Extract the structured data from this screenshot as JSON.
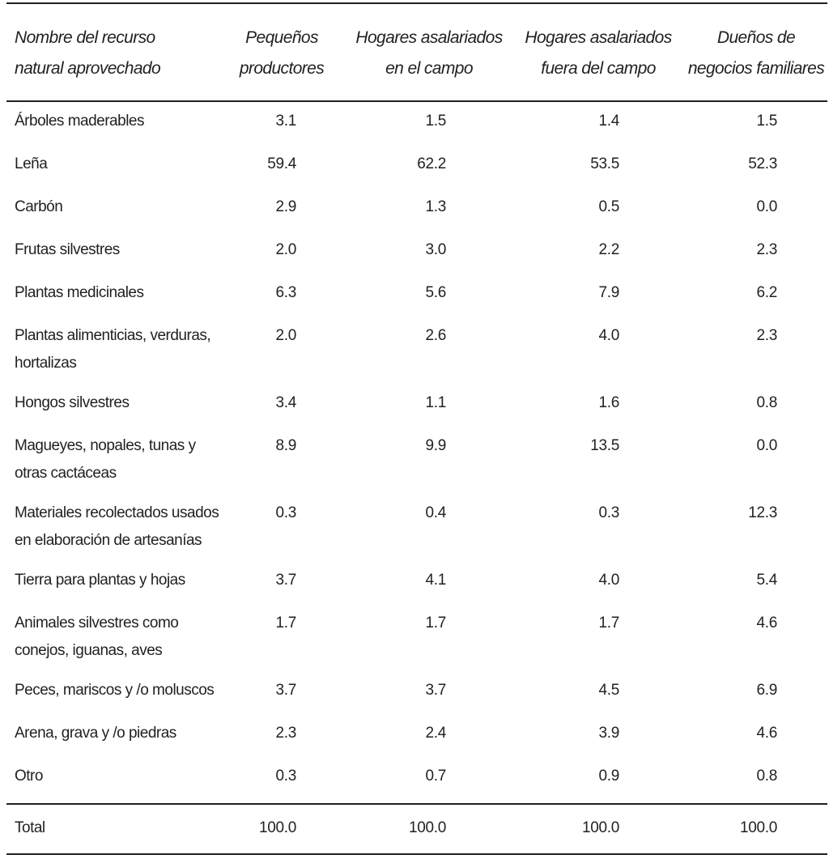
{
  "table": {
    "headers": [
      [
        "Nombre del recurso",
        "natural aprovechado"
      ],
      [
        "Pequeños",
        "productores"
      ],
      [
        "Hogares asalariados",
        "en el campo"
      ],
      [
        "Hogares asalariados",
        "fuera del campo"
      ],
      [
        "Dueños de",
        "negocios familiares"
      ]
    ],
    "rows": [
      {
        "name": [
          "Árboles maderables"
        ],
        "values": [
          "3.1",
          "1.5",
          "1.4",
          "1.5"
        ]
      },
      {
        "name": [
          "Leña"
        ],
        "values": [
          "59.4",
          "62.2",
          "53.5",
          "52.3"
        ]
      },
      {
        "name": [
          "Carbón"
        ],
        "values": [
          "2.9",
          "1.3",
          "0.5",
          "0.0"
        ]
      },
      {
        "name": [
          "Frutas silvestres"
        ],
        "values": [
          "2.0",
          "3.0",
          "2.2",
          "2.3"
        ]
      },
      {
        "name": [
          "Plantas medicinales"
        ],
        "values": [
          "6.3",
          "5.6",
          "7.9",
          "6.2"
        ]
      },
      {
        "name": [
          "Plantas alimenticias, verduras,",
          "hortalizas"
        ],
        "values": [
          "2.0",
          "2.6",
          "4.0",
          "2.3"
        ]
      },
      {
        "name": [
          "Hongos silvestres"
        ],
        "values": [
          "3.4",
          "1.1",
          "1.6",
          "0.8"
        ]
      },
      {
        "name": [
          "Magueyes, nopales, tunas y",
          "otras cactáceas"
        ],
        "values": [
          "8.9",
          "9.9",
          "13.5",
          "0.0"
        ]
      },
      {
        "name": [
          "Materiales recolectados usados",
          "en elaboración de artesanías"
        ],
        "values": [
          "0.3",
          "0.4",
          "0.3",
          "12.3"
        ]
      },
      {
        "name": [
          "Tierra para plantas y hojas"
        ],
        "values": [
          "3.7",
          "4.1",
          "4.0",
          "5.4"
        ]
      },
      {
        "name": [
          "Animales silvestres como",
          "conejos, iguanas, aves"
        ],
        "values": [
          "1.7",
          "1.7",
          "1.7",
          "4.6"
        ]
      },
      {
        "name": [
          "Peces, mariscos y /o moluscos"
        ],
        "values": [
          "3.7",
          "3.7",
          "4.5",
          "6.9"
        ]
      },
      {
        "name": [
          "Arena, grava y /o piedras"
        ],
        "values": [
          "2.3",
          "2.4",
          "3.9",
          "4.6"
        ]
      },
      {
        "name": [
          "Otro"
        ],
        "values": [
          "0.3",
          "0.7",
          "0.9",
          "0.8"
        ]
      }
    ],
    "total": {
      "name": [
        "Total"
      ],
      "values": [
        "100.0",
        "100.0",
        "100.0",
        "100.0"
      ]
    }
  }
}
